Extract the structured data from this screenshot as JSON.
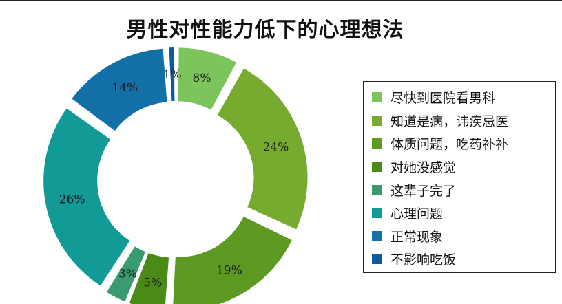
{
  "chart_data": {
    "type": "pie",
    "title": "男性对性能力低下的心理想法",
    "categories": [
      "尽快到医院看男科",
      "知道是病，讳疾忌医",
      "体质问题，吃药补补",
      "对她没感觉",
      "这辈子完了",
      "心理问题",
      "正常现象",
      "不影响吃饭"
    ],
    "values": [
      8,
      24,
      19,
      5,
      3,
      26,
      14,
      1
    ],
    "data_labels": [
      "8%",
      "24%",
      "19%",
      "5%",
      "3%",
      "26%",
      "14%",
      "1%"
    ],
    "colors": [
      "#7cc45c",
      "#77ab2f",
      "#5d9a22",
      "#4a8a16",
      "#3a9a70",
      "#129a96",
      "#1270a6",
      "#0d5aa0"
    ],
    "style": "doughnut-exploded",
    "legend_position": "right"
  }
}
